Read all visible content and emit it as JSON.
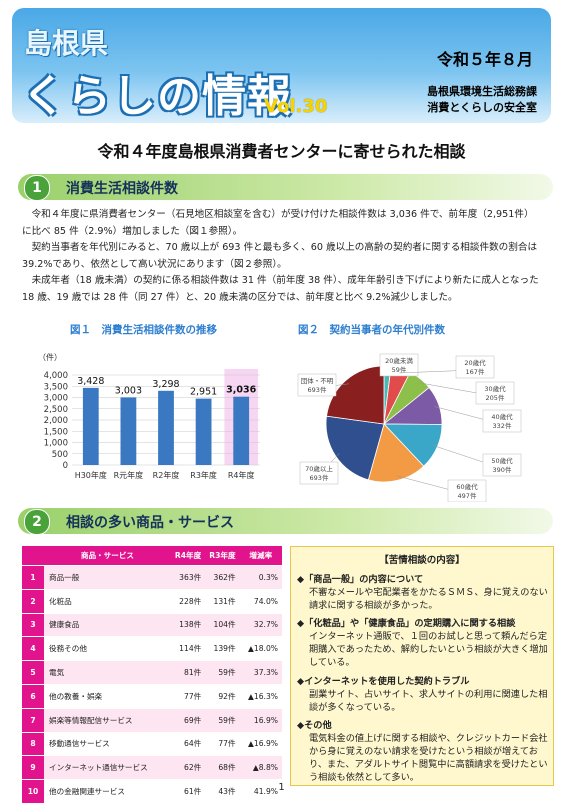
{
  "header": {
    "prefecture": "島根県",
    "title": "くらしの情報",
    "vol": "Vol.30",
    "date": "令和５年８月",
    "dept1": "島根県環境生活総務課",
    "dept2": "消費とくらしの安全室"
  },
  "main_title": "令和４年度島根県消費者センターに寄せられた相談",
  "section1": {
    "num": "1",
    "title": "消費生活相談件数",
    "p1": "令和４年度に県消費者センター（石見地区相談室を含む）が受け付けた相談件数は 3,036 件で、前年度（2,951件）に比べ 85 件（2.9%）増加しました（図１参照）。",
    "p2": "契約当事者を年代別にみると、70 歳以上が 693 件と最も多く、60 歳以上の高齢の契約者に関する相談件数の割合は 39.2%であり、依然として高い状況にあります（図２参照）。",
    "p3": "未成年者（18 歳未満）の契約に係る相談件数は 31 件（前年度 38 件）、成年年齢引き下げにより新たに成人となった 18 歳、19 歳では 28 件（同 27 件）と、20 歳未満の区分では、前年度と比べ 9.2%減少しました。"
  },
  "fig1": {
    "caption": "図１　消費生活相談件数の推移",
    "unit": "（件）",
    "yticks": [
      "4,000",
      "3,500",
      "3,000",
      "2,500",
      "2,000",
      "1,500",
      "1,000",
      "500",
      "0"
    ]
  },
  "fig2": {
    "caption": "図２　契約当事者の年代別件数",
    "labels": [
      {
        "l1": "20歳未満",
        "l2": "59件"
      },
      {
        "l1": "20歳代",
        "l2": "167件"
      },
      {
        "l1": "30歳代",
        "l2": "205件"
      },
      {
        "l1": "40歳代",
        "l2": "332件"
      },
      {
        "l1": "50歳代",
        "l2": "390件"
      },
      {
        "l1": "60歳代",
        "l2": "497件"
      },
      {
        "l1": "70歳以上",
        "l2": "693件"
      },
      {
        "l1": "団体・不明",
        "l2": "693件"
      }
    ]
  },
  "chart_data": [
    {
      "type": "bar",
      "title": "図１　消費生活相談件数の推移",
      "ylabel": "（件）",
      "categories": [
        "H30年度",
        "R元年度",
        "R2年度",
        "R3年度",
        "R4年度"
      ],
      "values": [
        3428,
        3003,
        3298,
        2951,
        3036
      ],
      "value_labels": [
        "3,428",
        "3,003",
        "3,298",
        "2,951",
        "3,036"
      ],
      "ylim": [
        0,
        4000
      ],
      "grid": true,
      "bar_color": "#3b78c2",
      "highlight_bg": "#f6d6f2"
    },
    {
      "type": "pie",
      "title": "図２　契約当事者の年代別件数",
      "categories": [
        "20歳未満",
        "20歳代",
        "30歳代",
        "40歳代",
        "50歳代",
        "60歳代",
        "70歳以上",
        "団体・不明"
      ],
      "values": [
        59,
        167,
        205,
        332,
        390,
        497,
        693,
        693
      ],
      "colors": [
        "#4bb8b8",
        "#e14b4b",
        "#8cc04a",
        "#7d5aa6",
        "#3aa7c9",
        "#f39a45",
        "#2f4f8f",
        "#8a1f1f"
      ]
    }
  ],
  "section2": {
    "num": "2",
    "title": "相談の多い商品・サービス"
  },
  "table": {
    "headers": [
      "",
      "商品・サービス",
      "R4年度",
      "R3年度",
      "増減率"
    ],
    "rows": [
      {
        "n": "1",
        "name": "商品一般",
        "r4": "363件",
        "r3": "362件",
        "rate": "0.3%"
      },
      {
        "n": "2",
        "name": "化粧品",
        "r4": "228件",
        "r3": "131件",
        "rate": "74.0%"
      },
      {
        "n": "3",
        "name": "健康食品",
        "r4": "138件",
        "r3": "104件",
        "rate": "32.7%"
      },
      {
        "n": "4",
        "name": "役務その他",
        "r4": "114件",
        "r3": "139件",
        "rate": "▲18.0%"
      },
      {
        "n": "5",
        "name": "電気",
        "r4": "81件",
        "r3": "59件",
        "rate": "37.3%"
      },
      {
        "n": "6",
        "name": "他の教養・娯楽",
        "r4": "77件",
        "r3": "92件",
        "rate": "▲16.3%"
      },
      {
        "n": "7",
        "name": "娯楽等情報配信サービス",
        "r4": "69件",
        "r3": "59件",
        "rate": "16.9%"
      },
      {
        "n": "8",
        "name": "移動通信サービス",
        "r4": "64件",
        "r3": "77件",
        "rate": "▲16.9%"
      },
      {
        "n": "9",
        "name": "インターネット通信サービス",
        "r4": "62件",
        "r3": "68件",
        "rate": "▲8.8%"
      },
      {
        "n": "10",
        "name": "他の金融関連サービス",
        "r4": "61件",
        "r3": "43件",
        "rate": "41.9%"
      }
    ]
  },
  "box": {
    "title": "【苦情相談の内容】",
    "items": [
      {
        "h": "◆「商品一般」の内容について",
        "d": "不審なメールや宅配業者をかたるＳＭＳ、身に覚えのない請求に関する相談が多かった。"
      },
      {
        "h": "◆「化粧品」や「健康食品」の定期購入に関する相談",
        "d": "インターネット通販で、１回のお試しと思って頼んだら定期購入であったため、解約したいという相談が大きく増加している。"
      },
      {
        "h": "◆インターネットを使用した契約トラブル",
        "d": "副業サイト、占いサイト、求人サイトの利用に関連した相談が多くなっている。"
      },
      {
        "h": "◆その他",
        "d": "電気料金の値上げに関する相談や、クレジットカード会社から身に覚えのない請求を受けたという相談が増えており、また、アダルトサイト閲覧中に高額請求を受けたという相談も依然として多い。"
      }
    ]
  },
  "page_number": "1"
}
